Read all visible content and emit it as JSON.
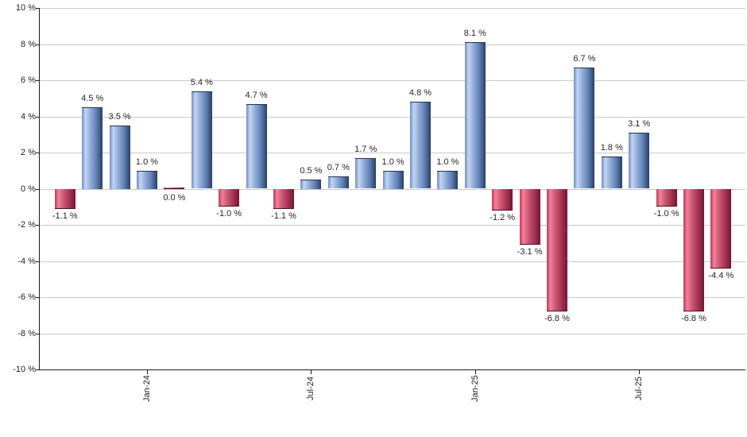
{
  "chart_data": {
    "type": "bar",
    "title": "",
    "xlabel": "",
    "ylabel": "",
    "ylim": [
      -10,
      10
    ],
    "ytick_step": 2,
    "grid": true,
    "legend": "none",
    "ytick_labels": [
      "10 %",
      "8 %",
      "6 %",
      "4 %",
      "2 %",
      "0 %",
      "-2 %",
      "-4 %",
      "-6 %",
      "-8 %",
      "-10 %"
    ],
    "xtick_labels": [
      {
        "label": "Jan-24",
        "bar_index": 3
      },
      {
        "label": "Jul-24",
        "bar_index": 9
      },
      {
        "label": "Jan-25",
        "bar_index": 15
      },
      {
        "label": "Jul-25",
        "bar_index": 21
      }
    ],
    "bars": [
      {
        "value": -1.1,
        "label": "-1.1 %",
        "color": "negative"
      },
      {
        "value": 4.5,
        "label": "4.5 %",
        "color": "positive"
      },
      {
        "value": 3.5,
        "label": "3.5 %",
        "color": "positive"
      },
      {
        "value": 1.0,
        "label": "1.0 %",
        "color": "positive"
      },
      {
        "value": 0.0,
        "label": "0.0 %",
        "color": "negative"
      },
      {
        "value": 5.4,
        "label": "5.4 %",
        "color": "positive"
      },
      {
        "value": -1.0,
        "label": "-1.0 %",
        "color": "negative"
      },
      {
        "value": 4.7,
        "label": "4.7 %",
        "color": "positive"
      },
      {
        "value": -1.1,
        "label": "-1.1 %",
        "color": "negative"
      },
      {
        "value": 0.5,
        "label": "0.5 %",
        "color": "positive"
      },
      {
        "value": 0.7,
        "label": "0.7 %",
        "color": "positive"
      },
      {
        "value": 1.7,
        "label": "1.7 %",
        "color": "positive"
      },
      {
        "value": 1.0,
        "label": "1.0 %",
        "color": "positive"
      },
      {
        "value": 4.8,
        "label": "4.8 %",
        "color": "positive"
      },
      {
        "value": 1.0,
        "label": "1.0 %",
        "color": "positive"
      },
      {
        "value": 8.1,
        "label": "8.1 %",
        "color": "positive"
      },
      {
        "value": -1.2,
        "label": "-1.2 %",
        "color": "negative"
      },
      {
        "value": -3.1,
        "label": "-3.1 %",
        "color": "negative"
      },
      {
        "value": -6.8,
        "label": "-6.8 %",
        "color": "negative"
      },
      {
        "value": 6.7,
        "label": "6.7 %",
        "color": "positive"
      },
      {
        "value": 1.8,
        "label": "1.8 %",
        "color": "positive"
      },
      {
        "value": 3.1,
        "label": "3.1 %",
        "color": "positive"
      },
      {
        "value": -1.0,
        "label": "-1.0 %",
        "color": "negative"
      },
      {
        "value": -6.8,
        "label": "-6.8 %",
        "color": "negative"
      },
      {
        "value": -4.4,
        "label": "-4.4 %",
        "color": "negative"
      }
    ],
    "colors": {
      "positive_bar": "#6a8fc7",
      "positive_highlight": "#c4d5f1",
      "positive_shadow": "#2f3e5e",
      "negative_bar": "#d03158",
      "negative_highlight": "#f08299",
      "negative_shadow": "#6a1a33",
      "gridline": "#c9c9c9",
      "axis": "#1a1a1a",
      "label_text": "#26262e"
    }
  }
}
